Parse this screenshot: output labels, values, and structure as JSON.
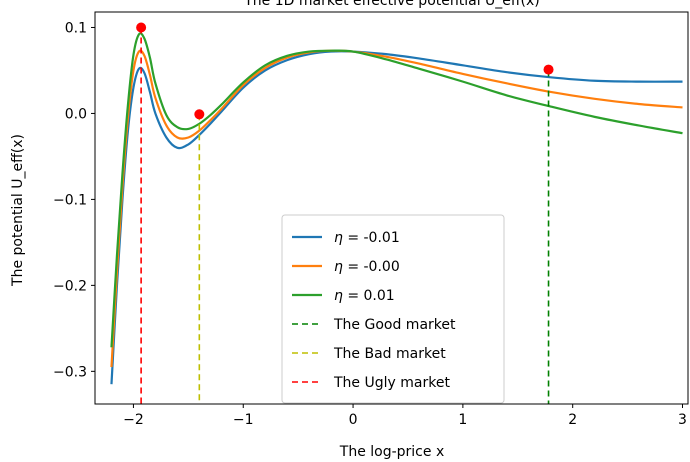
{
  "chart_data": {
    "type": "line",
    "title": "The 1D market effective potential U_eff(x)",
    "xlabel": "The log-price x",
    "ylabel": "The potential U_eff(x)",
    "xlim": [
      -2.35,
      3.05
    ],
    "ylim": [
      -0.338,
      0.118
    ],
    "xticks": [
      -2,
      -1,
      0,
      1,
      2,
      3
    ],
    "xtick_labels": [
      "−2",
      "−1",
      "0",
      "1",
      "2",
      "3"
    ],
    "yticks": [
      -0.3,
      -0.2,
      -0.1,
      0.0,
      0.1
    ],
    "ytick_labels": [
      "−0.3",
      "−0.2",
      "−0.1",
      "0.0",
      "0.1"
    ],
    "grid": false,
    "legend_position": "lower-center",
    "colors": {
      "blue": "#1f77b4",
      "orange": "#ff7f0e",
      "green": "#2ca02c",
      "good": "#008000",
      "bad": "#bfbf00",
      "ugly": "#ff0000",
      "marker": "#ff0000"
    },
    "series": [
      {
        "name": "η = -0.01",
        "label_prefix": "η",
        "label_value": " = -0.01",
        "color": "#1f77b4",
        "x": [
          -2.2,
          -2.15,
          -2.1,
          -2.05,
          -2.0,
          -1.95,
          -1.9,
          -1.85,
          -1.8,
          -1.7,
          -1.6,
          -1.5,
          -1.4,
          -1.3,
          -1.2,
          -1.0,
          -0.8,
          -0.6,
          -0.4,
          -0.2,
          0.0,
          0.3,
          0.6,
          1.0,
          1.4,
          1.8,
          2.2,
          2.6,
          3.0
        ],
        "y": [
          -0.315,
          -0.2,
          -0.1,
          -0.02,
          0.03,
          0.052,
          0.047,
          0.025,
          0.0,
          -0.028,
          -0.04,
          -0.036,
          -0.025,
          -0.012,
          0.002,
          0.03,
          0.05,
          0.062,
          0.069,
          0.072,
          0.072,
          0.069,
          0.064,
          0.056,
          0.048,
          0.042,
          0.038,
          0.037,
          0.037
        ]
      },
      {
        "name": "η = -0.00",
        "label_prefix": "η",
        "label_value": " = -0.00",
        "color": "#ff7f0e",
        "x": [
          -2.2,
          -2.15,
          -2.1,
          -2.05,
          -2.0,
          -1.95,
          -1.9,
          -1.85,
          -1.8,
          -1.7,
          -1.6,
          -1.5,
          -1.4,
          -1.3,
          -1.2,
          -1.0,
          -0.8,
          -0.6,
          -0.4,
          -0.2,
          0.0,
          0.3,
          0.6,
          1.0,
          1.4,
          1.8,
          2.2,
          2.6,
          3.0
        ],
        "y": [
          -0.295,
          -0.185,
          -0.085,
          -0.005,
          0.05,
          0.072,
          0.067,
          0.045,
          0.018,
          -0.014,
          -0.028,
          -0.028,
          -0.02,
          -0.008,
          0.005,
          0.033,
          0.053,
          0.065,
          0.071,
          0.073,
          0.072,
          0.066,
          0.058,
          0.046,
          0.035,
          0.025,
          0.017,
          0.011,
          0.007
        ]
      },
      {
        "name": "η = 0.01",
        "label_prefix": "η",
        "label_value": " = 0.01",
        "color": "#2ca02c",
        "x": [
          -2.2,
          -2.15,
          -2.1,
          -2.05,
          -2.0,
          -1.95,
          -1.9,
          -1.85,
          -1.8,
          -1.7,
          -1.6,
          -1.5,
          -1.4,
          -1.3,
          -1.2,
          -1.0,
          -0.8,
          -0.6,
          -0.4,
          -0.2,
          0.0,
          0.3,
          0.6,
          1.0,
          1.4,
          1.8,
          2.2,
          2.6,
          3.0
        ],
        "y": [
          -0.272,
          -0.165,
          -0.07,
          0.01,
          0.068,
          0.092,
          0.087,
          0.065,
          0.035,
          -0.002,
          -0.016,
          -0.018,
          -0.012,
          -0.002,
          0.01,
          0.036,
          0.056,
          0.067,
          0.072,
          0.073,
          0.072,
          0.063,
          0.052,
          0.037,
          0.021,
          0.008,
          -0.004,
          -0.014,
          -0.023
        ]
      }
    ],
    "vlines": [
      {
        "name": "The Good market",
        "x": 1.78,
        "y_top": 0.05,
        "color": "#008000"
      },
      {
        "name": "The Bad market",
        "x": -1.4,
        "y_top": -0.001,
        "color": "#bfbf00"
      },
      {
        "name": "The Ugly market",
        "x": -1.93,
        "y_top": 0.1,
        "color": "#ff0000"
      }
    ],
    "markers": [
      {
        "x": -1.93,
        "y": 0.1
      },
      {
        "x": -1.4,
        "y": -0.001
      },
      {
        "x": 1.78,
        "y": 0.051
      }
    ]
  }
}
